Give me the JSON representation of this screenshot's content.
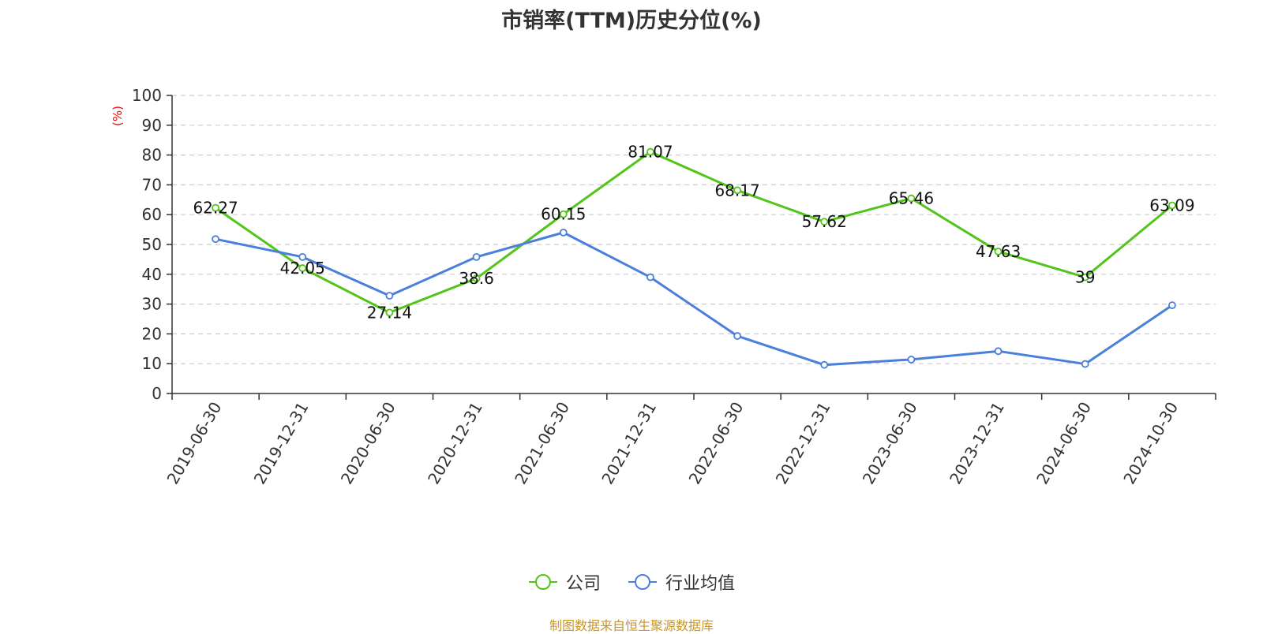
{
  "chart_data": {
    "type": "line",
    "title": "市销率(TTM)历史分位(%)",
    "ylabel": "(%)",
    "ylim": [
      0,
      100
    ],
    "yticks": [
      0,
      10,
      20,
      30,
      40,
      50,
      60,
      70,
      80,
      90,
      100
    ],
    "grid": true,
    "legend_position": "bottom",
    "categories": [
      "2019-06-30",
      "2019-12-31",
      "2020-06-30",
      "2020-12-31",
      "2021-06-30",
      "2021-12-31",
      "2022-06-30",
      "2022-12-31",
      "2023-06-30",
      "2023-12-31",
      "2024-06-30",
      "2024-10-30"
    ],
    "series": [
      {
        "name": "公司",
        "color": "#52c41a",
        "values": [
          62.27,
          42.05,
          27.14,
          38.6,
          60.15,
          81.07,
          68.17,
          57.62,
          65.46,
          47.63,
          39,
          63.09
        ],
        "labels": [
          "62.27",
          "42.05",
          "27.14",
          "38.6",
          "60.15",
          "81.07",
          "68.17",
          "57.62",
          "65.46",
          "47.63",
          "39",
          "63.09"
        ]
      },
      {
        "name": "行业均值",
        "color": "#4a7fdc",
        "values": [
          51.8,
          45.8,
          32.8,
          45.8,
          54.0,
          39.0,
          19.3,
          9.6,
          11.4,
          14.2,
          9.9,
          29.6
        ]
      }
    ],
    "source": "制图数据来自恒生聚源数据库"
  },
  "colors": {
    "title": "#333333",
    "axis": "#333333",
    "grid": "#cccccc",
    "unit_label": "#ff0000",
    "source": "#c8962a"
  }
}
